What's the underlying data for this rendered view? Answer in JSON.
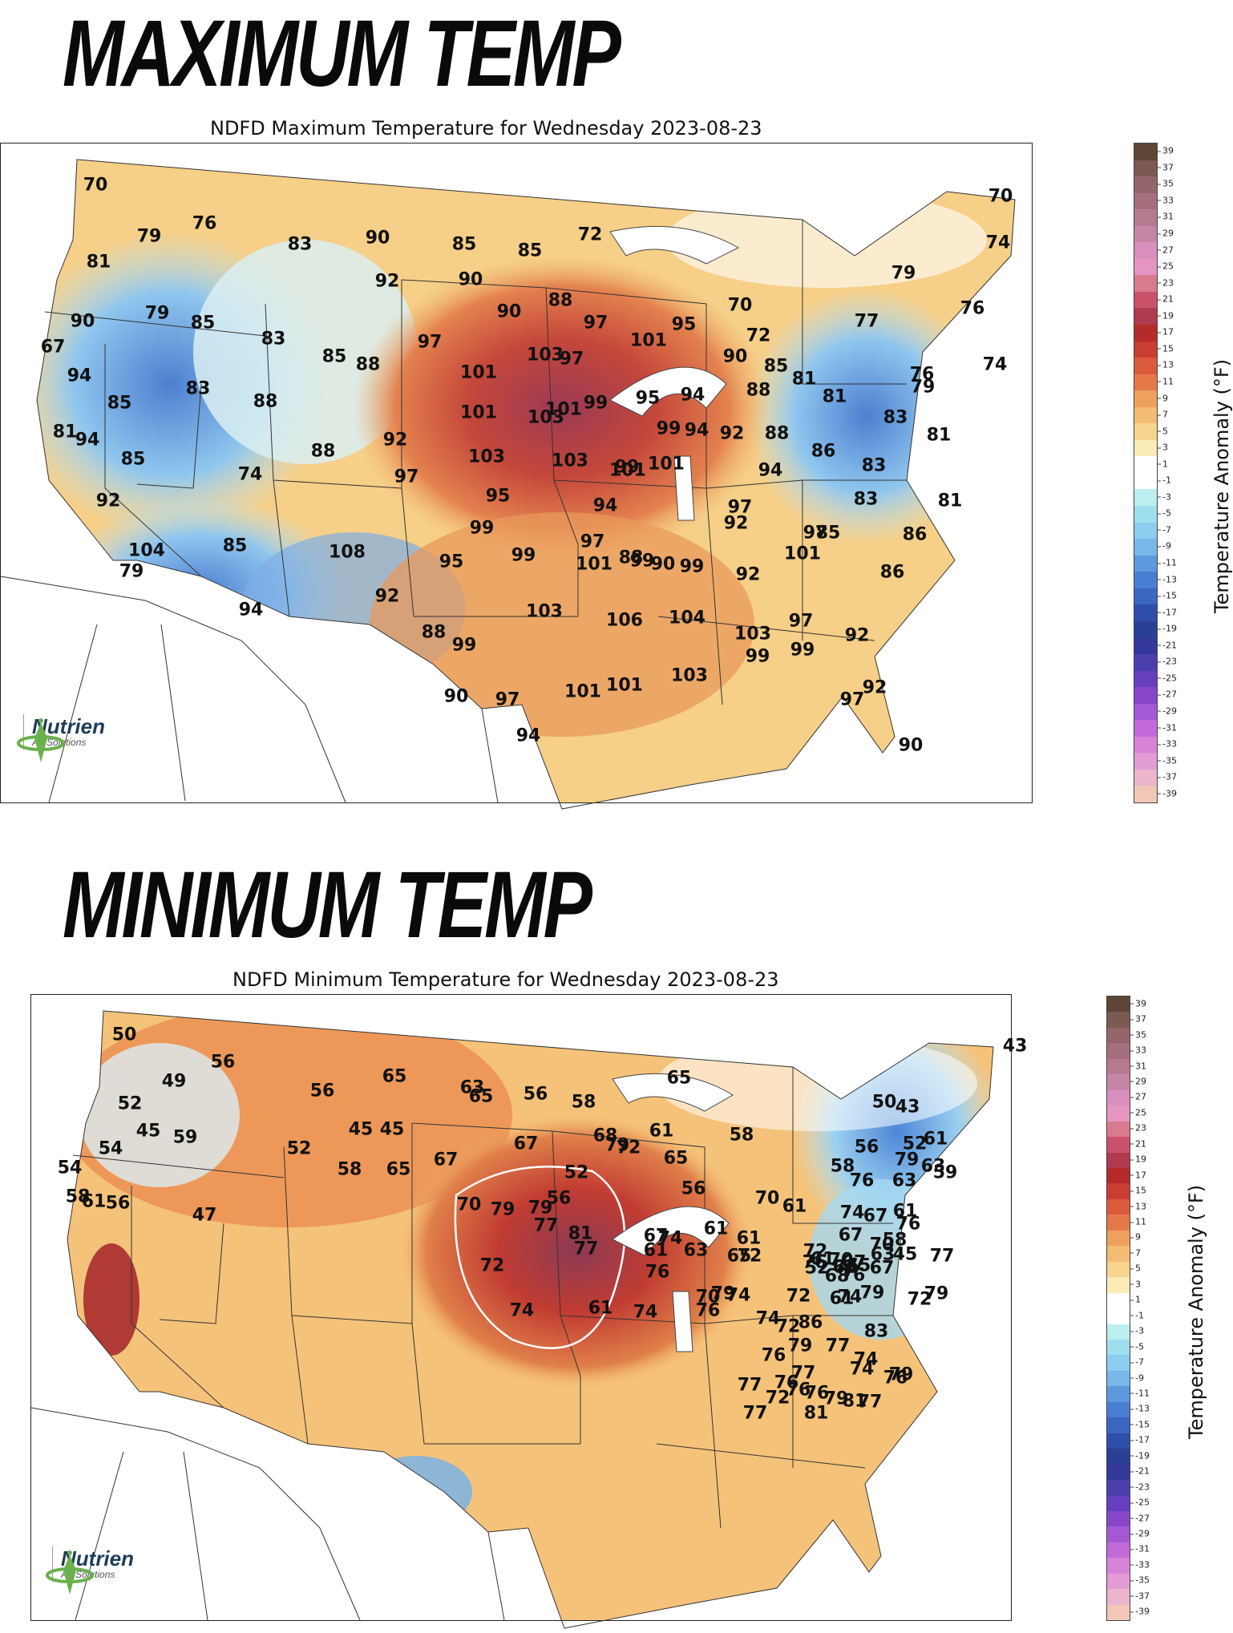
{
  "headlines": {
    "max": "MAXIMUM TEMP",
    "min": "MINIMUM TEMP"
  },
  "max_map": {
    "title": "NDFD Maximum Temperature for Wednesday 2023-08-23",
    "labels": [
      "70",
      "79",
      "76",
      "81",
      "83",
      "90",
      "85",
      "85",
      "72",
      "70",
      "92",
      "90",
      "79",
      "90",
      "74",
      "79",
      "85",
      "90",
      "88",
      "70",
      "76",
      "67",
      "83",
      "97",
      "97",
      "95",
      "72",
      "77",
      "85",
      "88",
      "101",
      "103",
      "97",
      "101",
      "90",
      "85",
      "81",
      "94",
      "85",
      "83",
      "88",
      "74",
      "76",
      "101",
      "99",
      "95",
      "94",
      "88",
      "81",
      "79",
      "81",
      "94",
      "101",
      "103",
      "99",
      "94",
      "92",
      "88",
      "83",
      "81",
      "85",
      "88",
      "92",
      "103",
      "103",
      "99",
      "101",
      "94",
      "86",
      "83",
      "74",
      "97",
      "101",
      "95",
      "94",
      "83",
      "81",
      "92",
      "99",
      "97",
      "97",
      "92",
      "104",
      "85",
      "99",
      "95",
      "99",
      "101",
      "99",
      "97",
      "85",
      "86",
      "79",
      "108",
      "86",
      "101",
      "92",
      "90",
      "88",
      "94",
      "92",
      "103",
      "106",
      "104",
      "103",
      "97",
      "88",
      "99",
      "99",
      "99",
      "92",
      "101",
      "101",
      "103",
      "92",
      "90",
      "97",
      "97",
      "94",
      "90"
    ],
    "logo_word": "Nutrien",
    "logo_sub": "Ag Solutions"
  },
  "min_map": {
    "title": "NDFD Minimum Temperature for Wednesday 2023-08-23",
    "labels": [
      "50",
      "49",
      "56",
      "65",
      "63",
      "56",
      "43",
      "52",
      "56",
      "58",
      "45",
      "45",
      "65",
      "65",
      "50",
      "54",
      "45",
      "59",
      "68",
      "61",
      "43",
      "52",
      "67",
      "79",
      "58",
      "54",
      "52",
      "67",
      "72",
      "65",
      "58",
      "56",
      "65",
      "58",
      "61",
      "79",
      "76",
      "63",
      "63",
      "59",
      "52",
      "56",
      "56",
      "70",
      "61",
      "58",
      "61",
      "56",
      "47",
      "70",
      "79",
      "79",
      "76",
      "74",
      "61",
      "58",
      "61",
      "61",
      "65",
      "67",
      "70",
      "77",
      "72",
      "67",
      "63",
      "61",
      "67",
      "52",
      "63",
      "74",
      "77",
      "77",
      "81",
      "67",
      "61",
      "45",
      "63",
      "72",
      "76",
      "70",
      "65",
      "76",
      "79",
      "70",
      "74",
      "74",
      "72",
      "72",
      "61",
      "76",
      "67",
      "68",
      "76",
      "79",
      "79",
      "72",
      "74",
      "61",
      "74",
      "76",
      "72",
      "86",
      "74",
      "83",
      "79",
      "77",
      "76",
      "74",
      "74",
      "76",
      "76",
      "77",
      "76",
      "77",
      "76",
      "72",
      "79",
      "81",
      "77",
      "81",
      "77",
      "79"
    ],
    "logo_word": "Nutrien",
    "logo_sub": "Ag Solutions"
  },
  "colorbar": {
    "label": "Temperature Anomaly (°F)",
    "ticks": [
      "39",
      "37",
      "35",
      "33",
      "31",
      "29",
      "27",
      "25",
      "23",
      "21",
      "19",
      "17",
      "15",
      "13",
      "11",
      "9",
      "7",
      "5",
      "3",
      "1",
      "-1",
      "-3",
      "-5",
      "-7",
      "-9",
      "-11",
      "-13",
      "-15",
      "-17",
      "-19",
      "-21",
      "-23",
      "-25",
      "-27",
      "-29",
      "-31",
      "-33",
      "-35",
      "-37",
      "-39"
    ],
    "colors": [
      "#5d4636",
      "#7b5a52",
      "#94656b",
      "#a66f7e",
      "#b67a90",
      "#c586a6",
      "#d98fbd",
      "#e595c0",
      "#d97a8e",
      "#c9526a",
      "#b03a4e",
      "#b52b2b",
      "#c93e30",
      "#db5a3c",
      "#e6794a",
      "#efa05c",
      "#f3bd73",
      "#f7d58f",
      "#faecb4",
      "#ffffff",
      "#ffffff",
      "#bdeef0",
      "#9fdeee",
      "#8dcdf0",
      "#79b6ea",
      "#5e98df",
      "#4a7ed2",
      "#3b66c2",
      "#2e4ea9",
      "#2a3f96",
      "#34399b",
      "#4b3fae",
      "#653fbd",
      "#8746c9",
      "#a558d4",
      "#c26ad8",
      "#d783d8",
      "#e29cd4",
      "#ebb5cd",
      "#f2c7b7"
    ]
  }
}
